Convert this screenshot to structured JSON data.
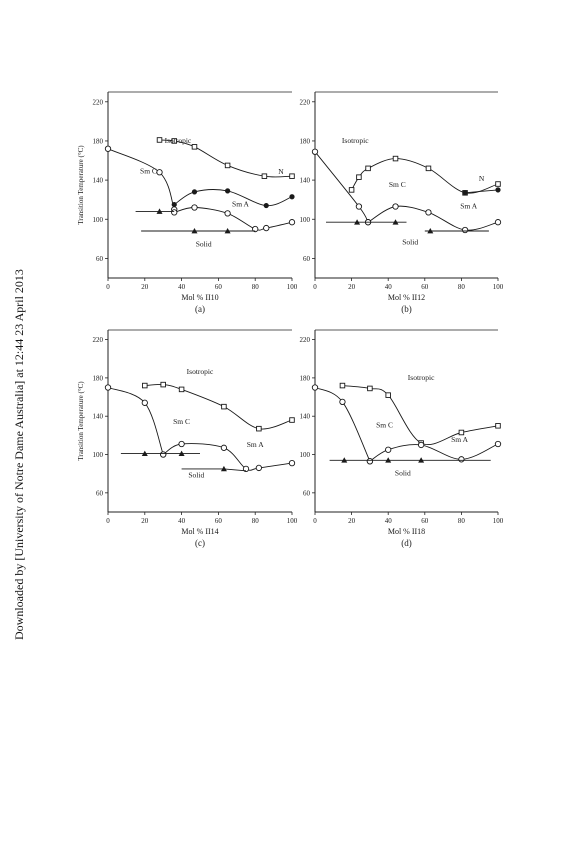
{
  "watermark": "Downloaded by [University of Notre Dame Australia] at 12:44 23 April 2013",
  "ylabel": "Transition Temperature (°C)",
  "colors": {
    "ink": "#1a1a1a",
    "frame": "#222222"
  },
  "chart_data": [
    {
      "type": "scatter",
      "panel_label": "(a)",
      "xlabel": "Mol % II10",
      "xlim": [
        0,
        100
      ],
      "ylim": [
        40,
        230
      ],
      "xticks": [
        0,
        20,
        40,
        60,
        80,
        100
      ],
      "yticks": [
        60,
        100,
        140,
        180,
        220
      ],
      "show_ylabel": true,
      "phase_labels": [
        {
          "text": "Isotropic",
          "x": 38,
          "y": 178
        },
        {
          "text": "N",
          "x": 94,
          "y": 146
        },
        {
          "text": "Sm C",
          "x": 22,
          "y": 147
        },
        {
          "text": "Sm A",
          "x": 72,
          "y": 113
        },
        {
          "text": "Solid",
          "x": 52,
          "y": 72
        }
      ],
      "series": [
        {
          "marker": "square",
          "curve": "smooth",
          "points": [
            [
              28,
              181
            ],
            [
              36,
              180
            ],
            [
              47,
              174
            ],
            [
              65,
              155
            ],
            [
              85,
              144
            ],
            [
              100,
              144
            ]
          ]
        },
        {
          "marker": "filled_circle",
          "curve": "smooth",
          "points": [
            [
              36,
              115
            ],
            [
              47,
              128
            ],
            [
              65,
              129
            ],
            [
              86,
              114
            ],
            [
              100,
              123
            ]
          ]
        },
        {
          "marker": "circle",
          "curve": "smooth",
          "points": [
            [
              0,
              172
            ],
            [
              28,
              148
            ],
            [
              36,
              110
            ]
          ]
        },
        {
          "marker": "circle",
          "curve": "smooth",
          "points": [
            [
              36,
              107
            ],
            [
              47,
              112
            ],
            [
              65,
              106
            ],
            [
              80,
              90
            ],
            [
              86,
              91
            ],
            [
              100,
              97
            ]
          ]
        },
        {
          "marker": "triangle",
          "curve": "linear",
          "points": [
            [
              15,
              108
            ],
            [
              28,
              108
            ],
            [
              36,
              108
            ]
          ]
        },
        {
          "marker": "triangle",
          "curve": "linear",
          "points": [
            [
              18,
              88
            ],
            [
              47,
              88
            ],
            [
              65,
              88
            ],
            [
              80,
              88
            ]
          ]
        }
      ]
    },
    {
      "type": "scatter",
      "panel_label": "(b)",
      "xlabel": "Mol % II12",
      "xlim": [
        0,
        100
      ],
      "ylim": [
        40,
        230
      ],
      "xticks": [
        0,
        20,
        40,
        60,
        80,
        100
      ],
      "yticks": [
        60,
        100,
        140,
        180,
        220
      ],
      "show_ylabel": false,
      "phase_labels": [
        {
          "text": "Isotropic",
          "x": 22,
          "y": 178
        },
        {
          "text": "N",
          "x": 91,
          "y": 139
        },
        {
          "text": "Sm C",
          "x": 45,
          "y": 133
        },
        {
          "text": "Sm A",
          "x": 84,
          "y": 111
        },
        {
          "text": "Solid",
          "x": 52,
          "y": 74
        }
      ],
      "series": [
        {
          "marker": "square",
          "curve": "smooth",
          "points": [
            [
              20,
              130
            ],
            [
              24,
              143
            ],
            [
              29,
              152
            ],
            [
              44,
              162
            ],
            [
              62,
              152
            ],
            [
              82,
              127
            ],
            [
              100,
              136
            ]
          ]
        },
        {
          "marker": "filled_circle",
          "curve": "smooth",
          "points": [
            [
              82,
              127
            ],
            [
              100,
              130
            ]
          ]
        },
        {
          "marker": "circle",
          "curve": "smooth",
          "points": [
            [
              0,
              169
            ],
            [
              24,
              113
            ],
            [
              29,
              97
            ]
          ]
        },
        {
          "marker": "circle",
          "curve": "smooth",
          "points": [
            [
              29,
              97
            ],
            [
              44,
              113
            ],
            [
              62,
              107
            ],
            [
              82,
              89
            ],
            [
              100,
              97
            ]
          ]
        },
        {
          "marker": "triangle",
          "curve": "linear",
          "points": [
            [
              6,
              97
            ],
            [
              23,
              97
            ],
            [
              44,
              97
            ],
            [
              50,
              97
            ]
          ]
        },
        {
          "marker": "triangle",
          "curve": "linear",
          "points": [
            [
              60,
              88
            ],
            [
              63,
              88
            ],
            [
              95,
              88
            ]
          ]
        }
      ]
    },
    {
      "type": "scatter",
      "panel_label": "(c)",
      "xlabel": "Mol % II14",
      "xlim": [
        0,
        100
      ],
      "ylim": [
        40,
        230
      ],
      "xticks": [
        0,
        20,
        40,
        60,
        80,
        100
      ],
      "yticks": [
        60,
        100,
        140,
        180,
        220
      ],
      "show_ylabel": true,
      "phase_labels": [
        {
          "text": "Isotropic",
          "x": 50,
          "y": 184
        },
        {
          "text": "Sm C",
          "x": 40,
          "y": 132
        },
        {
          "text": "Sm A",
          "x": 80,
          "y": 108
        },
        {
          "text": "Solid",
          "x": 48,
          "y": 76
        }
      ],
      "series": [
        {
          "marker": "square",
          "curve": "smooth",
          "points": [
            [
              20,
              172
            ],
            [
              30,
              173
            ],
            [
              40,
              168
            ],
            [
              63,
              150
            ],
            [
              82,
              127
            ],
            [
              100,
              136
            ]
          ]
        },
        {
          "marker": "circle",
          "curve": "smooth",
          "points": [
            [
              0,
              170
            ],
            [
              20,
              154
            ],
            [
              30,
              100
            ]
          ]
        },
        {
          "marker": "circle",
          "curve": "smooth",
          "points": [
            [
              30,
              100
            ],
            [
              40,
              111
            ],
            [
              63,
              107
            ],
            [
              75,
              85
            ],
            [
              82,
              86
            ],
            [
              100,
              91
            ]
          ]
        },
        {
          "marker": "triangle",
          "curve": "linear",
          "points": [
            [
              7,
              101
            ],
            [
              20,
              101
            ],
            [
              40,
              101
            ],
            [
              50,
              101
            ]
          ]
        },
        {
          "marker": "triangle",
          "curve": "linear",
          "points": [
            [
              40,
              85
            ],
            [
              63,
              85
            ],
            [
              75,
              83
            ]
          ]
        }
      ]
    },
    {
      "type": "scatter",
      "panel_label": "(d)",
      "xlabel": "Mol % II18",
      "xlim": [
        0,
        100
      ],
      "ylim": [
        40,
        230
      ],
      "xticks": [
        0,
        20,
        40,
        60,
        80,
        100
      ],
      "yticks": [
        60,
        100,
        140,
        180,
        220
      ],
      "show_ylabel": false,
      "phase_labels": [
        {
          "text": "Isotropic",
          "x": 58,
          "y": 178
        },
        {
          "text": "Sm C",
          "x": 38,
          "y": 128
        },
        {
          "text": "Sm A",
          "x": 79,
          "y": 113
        },
        {
          "text": "Solid",
          "x": 48,
          "y": 78
        }
      ],
      "series": [
        {
          "marker": "square",
          "curve": "smooth",
          "points": [
            [
              15,
              172
            ],
            [
              30,
              169
            ],
            [
              40,
              162
            ],
            [
              58,
              112
            ],
            [
              80,
              123
            ],
            [
              100,
              130
            ]
          ]
        },
        {
          "marker": "circle",
          "curve": "smooth",
          "points": [
            [
              0,
              170
            ],
            [
              15,
              155
            ],
            [
              30,
              93
            ]
          ]
        },
        {
          "marker": "circle",
          "curve": "smooth",
          "points": [
            [
              30,
              93
            ],
            [
              40,
              105
            ],
            [
              58,
              110
            ],
            [
              80,
              95
            ],
            [
              100,
              111
            ]
          ]
        },
        {
          "marker": "triangle",
          "curve": "linear",
          "points": [
            [
              8,
              94
            ],
            [
              16,
              94
            ],
            [
              40,
              94
            ],
            [
              58,
              94
            ],
            [
              96,
              94
            ]
          ]
        }
      ]
    }
  ]
}
